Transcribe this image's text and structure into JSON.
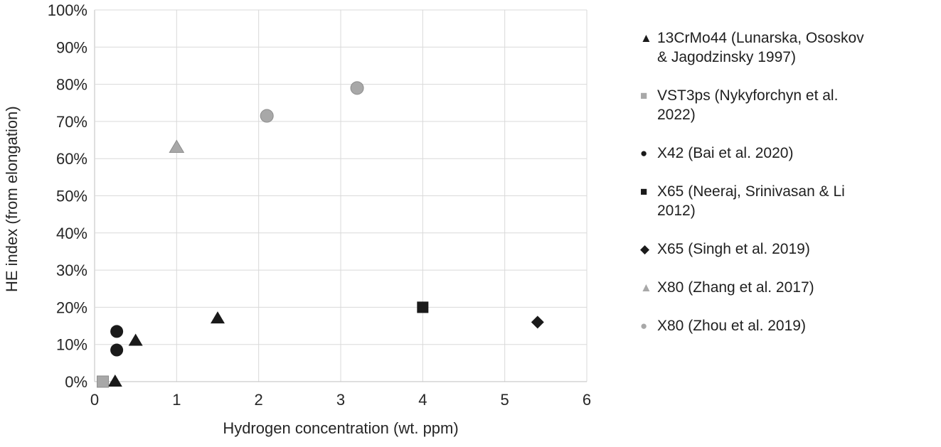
{
  "chart_data": {
    "type": "scatter",
    "title": "",
    "xlabel": "Hydrogen concentration (wt. ppm)",
    "ylabel": "HE index (from elongation)",
    "xlim": [
      0,
      6
    ],
    "ylim": [
      0,
      100
    ],
    "x_ticks": [
      0,
      1,
      2,
      3,
      4,
      5,
      6
    ],
    "x_tick_labels": [
      "0",
      "1",
      "2",
      "3",
      "4",
      "5",
      "6"
    ],
    "y_ticks": [
      0,
      10,
      20,
      30,
      40,
      50,
      60,
      70,
      80,
      90,
      100
    ],
    "y_tick_labels": [
      "0%",
      "10%",
      "20%",
      "30%",
      "40%",
      "50%",
      "60%",
      "70%",
      "80%",
      "90%",
      "100%"
    ],
    "grid": true,
    "legend_position": "right",
    "colors": {
      "black_marker": "#1a1a1a",
      "gray_marker": "#a8a8a8",
      "gray_marker_stroke": "#8c8c8c",
      "gridline": "#d9d9d9",
      "axis_line": "#bfbfbf",
      "text": "#262626"
    },
    "series": [
      {
        "name": "13CrMo44 (Lunarska, Ososkov & Jagodzinsky 1997)",
        "marker": "triangle",
        "color": "#1a1a1a",
        "stroke": "none",
        "points": [
          [
            0.25,
            0
          ],
          [
            0.5,
            11
          ],
          [
            1.5,
            17
          ]
        ]
      },
      {
        "name": "VST3ps (Nykyforchyn et al. 2022)",
        "marker": "square",
        "color": "#a8a8a8",
        "stroke": "#8c8c8c",
        "points": [
          [
            0.1,
            0
          ]
        ]
      },
      {
        "name": "X42 (Bai et al. 2020)",
        "marker": "circle",
        "color": "#1a1a1a",
        "stroke": "none",
        "points": [
          [
            0.27,
            13.5
          ],
          [
            0.27,
            8.5
          ]
        ]
      },
      {
        "name": "X65 (Neeraj, Srinivasan & Li 2012)",
        "marker": "square",
        "color": "#1a1a1a",
        "stroke": "none",
        "points": [
          [
            4.0,
            20
          ]
        ]
      },
      {
        "name": "X65 (Singh et al. 2019)",
        "marker": "diamond",
        "color": "#1a1a1a",
        "stroke": "none",
        "points": [
          [
            5.4,
            16
          ]
        ]
      },
      {
        "name": "X80 (Zhang et al. 2017)",
        "marker": "triangle",
        "color": "#a8a8a8",
        "stroke": "#8c8c8c",
        "points": [
          [
            1.0,
            63
          ]
        ]
      },
      {
        "name": "X80 (Zhou et al. 2019)",
        "marker": "circle",
        "color": "#a8a8a8",
        "stroke": "#8c8c8c",
        "points": [
          [
            2.1,
            71.5
          ],
          [
            3.2,
            79
          ]
        ]
      }
    ]
  }
}
